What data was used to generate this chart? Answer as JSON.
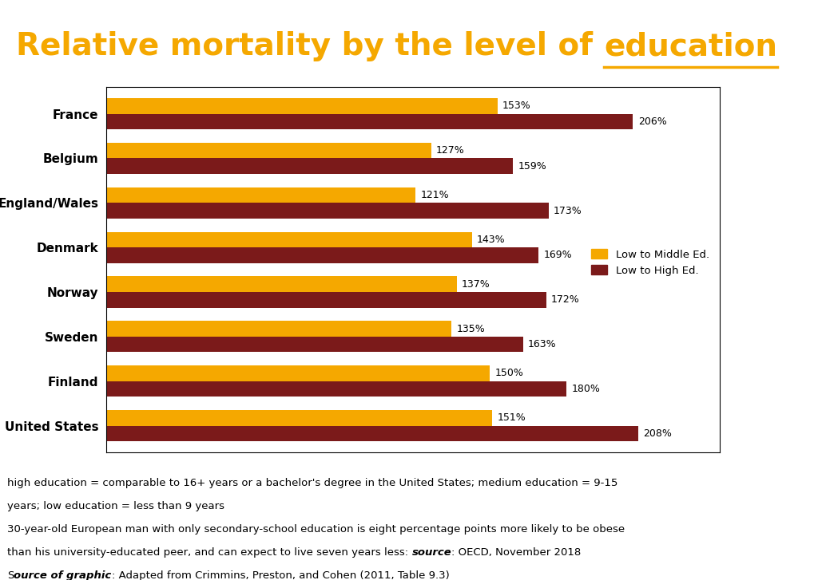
{
  "title_regular": "Relative mortality by the level of ",
  "title_highlight": "education",
  "title_color": "#F5A800",
  "title_underline_color": "#F5A800",
  "title_fontsize": 28,
  "background_color": "#ffffff",
  "chart_bg": "#ffffff",
  "categories": [
    "France",
    "Belgium",
    "England/Wales",
    "Denmark",
    "Norway",
    "Sweden",
    "Finland",
    "United States"
  ],
  "low_to_middle": [
    153,
    127,
    121,
    143,
    137,
    135,
    150,
    151
  ],
  "low_to_high": [
    206,
    159,
    173,
    169,
    172,
    163,
    180,
    208
  ],
  "color_middle": "#F5A800",
  "color_high": "#7B1A1A",
  "xlim": [
    0,
    240
  ],
  "legend_middle": "Low to Middle Ed.",
  "legend_high": "Low to High Ed.",
  "footnote_fontsize": 9.5,
  "bar_height": 0.35,
  "label_fontsize": 9,
  "ytick_fontsize": 11
}
